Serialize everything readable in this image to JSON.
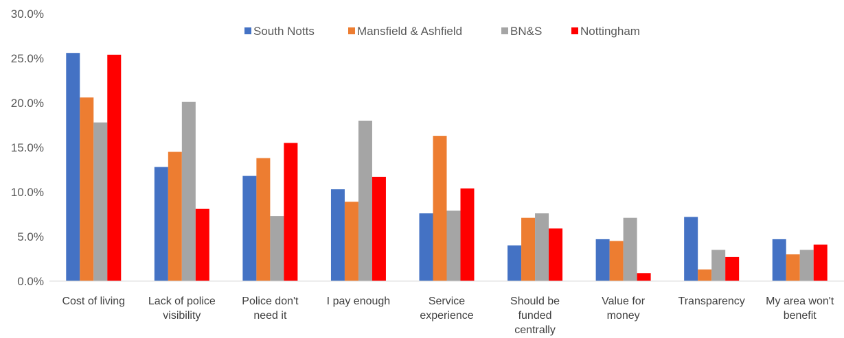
{
  "chart_data": {
    "type": "bar",
    "categories": [
      [
        "Cost of living"
      ],
      [
        "Lack of police",
        "visibility"
      ],
      [
        "Police don't",
        "need it"
      ],
      [
        "I pay enough"
      ],
      [
        "Service",
        "experience"
      ],
      [
        "Should be",
        "funded",
        "centrally"
      ],
      [
        "Value for",
        "money"
      ],
      [
        "Transparency"
      ],
      [
        "My area won't",
        "benefit"
      ]
    ],
    "series": [
      {
        "name": "South Notts",
        "color": "#4472C4",
        "values": [
          25.6,
          12.8,
          11.8,
          10.3,
          7.6,
          4.0,
          4.7,
          7.2,
          4.7
        ]
      },
      {
        "name": "Mansfield & Ashfield",
        "color": "#ED7D31",
        "values": [
          20.6,
          14.5,
          13.8,
          8.9,
          16.3,
          7.1,
          4.5,
          1.3,
          3.0
        ]
      },
      {
        "name": "BN&S",
        "color": "#A5A5A5",
        "values": [
          17.8,
          20.1,
          7.3,
          18.0,
          7.9,
          7.6,
          7.1,
          3.5,
          3.5
        ]
      },
      {
        "name": "Nottingham",
        "color": "#FF0000",
        "values": [
          25.4,
          8.1,
          15.5,
          11.7,
          10.4,
          5.9,
          0.9,
          2.7,
          4.1
        ]
      }
    ],
    "ylim": [
      0,
      30
    ],
    "yticks": [
      "0.0%",
      "5.0%",
      "10.0%",
      "15.0%",
      "20.0%",
      "25.0%",
      "30.0%"
    ],
    "title": "",
    "xlabel": "",
    "ylabel": "",
    "grid": false,
    "legend_position": "top"
  }
}
